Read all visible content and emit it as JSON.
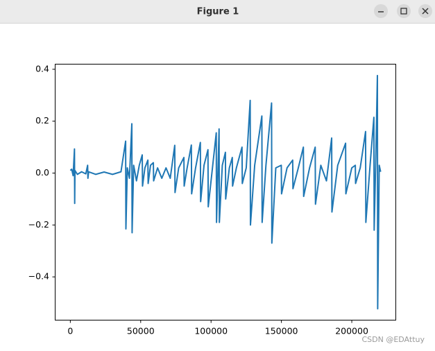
{
  "window": {
    "title": "Figure 1"
  },
  "watermark": "CSDN @EDAttuy",
  "chart_data": {
    "type": "line",
    "color": "#1f77b4",
    "x": [
      0,
      1000,
      2000,
      2950,
      3100,
      3300,
      5000,
      8000,
      11000,
      12300,
      12500,
      13000,
      18000,
      24000,
      30000,
      36000,
      39300,
      39500,
      40500,
      42000,
      43700,
      43900,
      45000,
      47000,
      49000,
      51100,
      51300,
      53000,
      55100,
      55300,
      57000,
      59000,
      59200,
      62000,
      65000,
      68000,
      71000,
      74200,
      74400,
      77000,
      80700,
      80900,
      83000,
      86000,
      86200,
      89000,
      92400,
      92600,
      95000,
      97800,
      98000,
      101000,
      103700,
      103900,
      105700,
      105900,
      108000,
      110200,
      110400,
      113000,
      115100,
      115300,
      118000,
      122000,
      122200,
      125000,
      127800,
      128000,
      131000,
      136100,
      136300,
      139000,
      143000,
      143200,
      146000,
      149900,
      150100,
      154000,
      158000,
      158200,
      162000,
      165600,
      165800,
      170000,
      174000,
      174200,
      178000,
      182000,
      185700,
      185900,
      190000,
      195600,
      195800,
      200000,
      202500,
      202700,
      206000,
      209800,
      210000,
      213000,
      215700,
      215900,
      217000,
      218200,
      218400,
      219500,
      220500
    ],
    "values": [
      0.01,
      0.015,
      -0.01,
      0.093,
      -0.117,
      0.01,
      -0.005,
      0.005,
      -0.003,
      0.03,
      -0.02,
      0.005,
      -0.005,
      0.004,
      -0.005,
      0.005,
      0.123,
      -0.215,
      0.02,
      -0.02,
      0.19,
      -0.23,
      0.03,
      -0.03,
      0.03,
      0.07,
      -0.05,
      0.02,
      0.05,
      -0.04,
      0.03,
      0.04,
      -0.03,
      0.02,
      -0.02,
      0.02,
      -0.02,
      0.107,
      -0.075,
      0.02,
      0.06,
      -0.05,
      0.02,
      0.108,
      -0.08,
      0.02,
      0.118,
      -0.11,
      0.03,
      0.09,
      -0.13,
      0.02,
      0.155,
      -0.19,
      0.17,
      -0.19,
      0.03,
      0.08,
      -0.1,
      0.02,
      0.06,
      -0.05,
      0.02,
      0.1,
      -0.04,
      0.02,
      0.28,
      -0.2,
      0.03,
      0.22,
      -0.19,
      0.03,
      0.27,
      -0.27,
      0.02,
      0.03,
      -0.08,
      0.02,
      0.05,
      -0.06,
      0.02,
      0.1,
      -0.09,
      0.02,
      0.1,
      -0.12,
      0.03,
      -0.03,
      0.135,
      -0.15,
      0.03,
      0.115,
      -0.08,
      0.02,
      0.03,
      -0.04,
      0.02,
      0.16,
      -0.19,
      0.03,
      0.215,
      -0.22,
      0.04,
      0.376,
      -0.523,
      0.03,
      0.005
    ],
    "xlim": [
      -11025,
      231525
    ],
    "ylim": [
      -0.568,
      0.421
    ],
    "xticks": [
      0,
      50000,
      100000,
      150000,
      200000
    ],
    "yticks": [
      {
        "value": -0.4,
        "label": "−0.4"
      },
      {
        "value": -0.2,
        "label": "−0.2"
      },
      {
        "value": 0,
        "label": "0.0"
      },
      0.2,
      0.4
    ]
  }
}
